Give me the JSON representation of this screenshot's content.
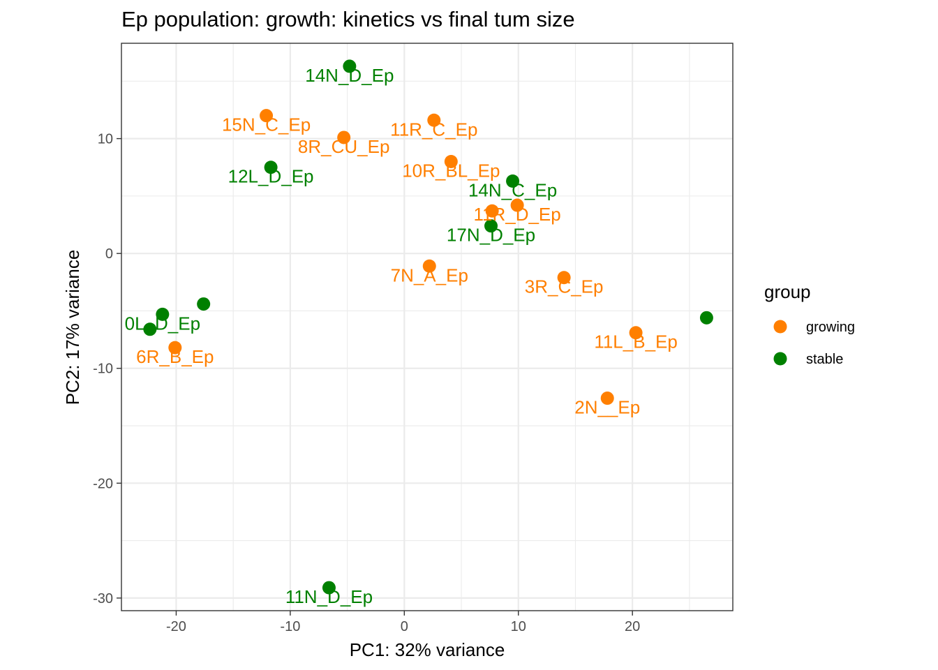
{
  "chart_data": {
    "type": "scatter",
    "title": "Ep population: growth: kinetics vs final tum size",
    "xlabel": "PC1: 32% variance",
    "ylabel": "PC2: 17% variance",
    "xlim": [
      -24.8,
      28.8
    ],
    "ylim": [
      -31.1,
      18.3
    ],
    "x_ticks": [
      -20,
      -10,
      0,
      10,
      20
    ],
    "x_tick_labels": [
      "-20",
      "-10",
      "0",
      "10",
      "20"
    ],
    "y_ticks": [
      -30,
      -20,
      -10,
      0,
      10
    ],
    "y_tick_labels": [
      "-30",
      "-20",
      "-10",
      "0",
      "10"
    ],
    "grid": true,
    "legend": {
      "title": "group",
      "placement": "right",
      "entries": [
        {
          "name": "growing",
          "color": "#FF7F00"
        },
        {
          "name": "stable",
          "color": "#008000"
        }
      ]
    },
    "points": [
      {
        "x": -4.8,
        "y": 16.3,
        "label": "14N_D_Ep",
        "group": "stable"
      },
      {
        "x": -12.1,
        "y": 12.0,
        "label": "15N_C_Ep",
        "group": "growing"
      },
      {
        "x": 2.6,
        "y": 11.6,
        "label": "11R_C_Ep",
        "group": "growing"
      },
      {
        "x": -5.3,
        "y": 10.1,
        "label": "8R_CU_Ep",
        "group": "growing"
      },
      {
        "x": 4.1,
        "y": 8.0,
        "label": "10R_BL_Ep",
        "group": "growing"
      },
      {
        "x": -11.7,
        "y": 7.5,
        "label": "12L_D_Ep",
        "group": "stable"
      },
      {
        "x": 9.5,
        "y": 6.3,
        "label": "14N_C_Ep",
        "group": "stable"
      },
      {
        "x": 9.9,
        "y": 4.2,
        "label": "11R_D_Ep",
        "group": "growing"
      },
      {
        "x": 7.7,
        "y": 3.7,
        "label": "",
        "group": "growing"
      },
      {
        "x": 7.6,
        "y": 2.4,
        "label": "17N_D_Ep",
        "group": "stable"
      },
      {
        "x": 2.2,
        "y": -1.1,
        "label": "7N_A_Ep",
        "group": "growing"
      },
      {
        "x": 14.0,
        "y": -2.1,
        "label": "3R_C_Ep",
        "group": "growing"
      },
      {
        "x": -17.6,
        "y": -4.4,
        "label": "",
        "group": "stable"
      },
      {
        "x": -21.2,
        "y": -5.3,
        "label": "0L_D_Ep",
        "group": "stable"
      },
      {
        "x": -22.3,
        "y": -6.6,
        "label": "",
        "group": "stable"
      },
      {
        "x": 26.5,
        "y": -5.6,
        "label": "",
        "group": "stable"
      },
      {
        "x": 20.3,
        "y": -6.9,
        "label": "11L_B_Ep",
        "group": "growing"
      },
      {
        "x": -20.1,
        "y": -8.2,
        "label": "6R_B_Ep",
        "group": "growing"
      },
      {
        "x": 17.8,
        "y": -12.6,
        "label": "2N__Ep",
        "group": "growing"
      },
      {
        "x": -6.6,
        "y": -29.1,
        "label": "11N_D_Ep",
        "group": "stable"
      }
    ]
  }
}
